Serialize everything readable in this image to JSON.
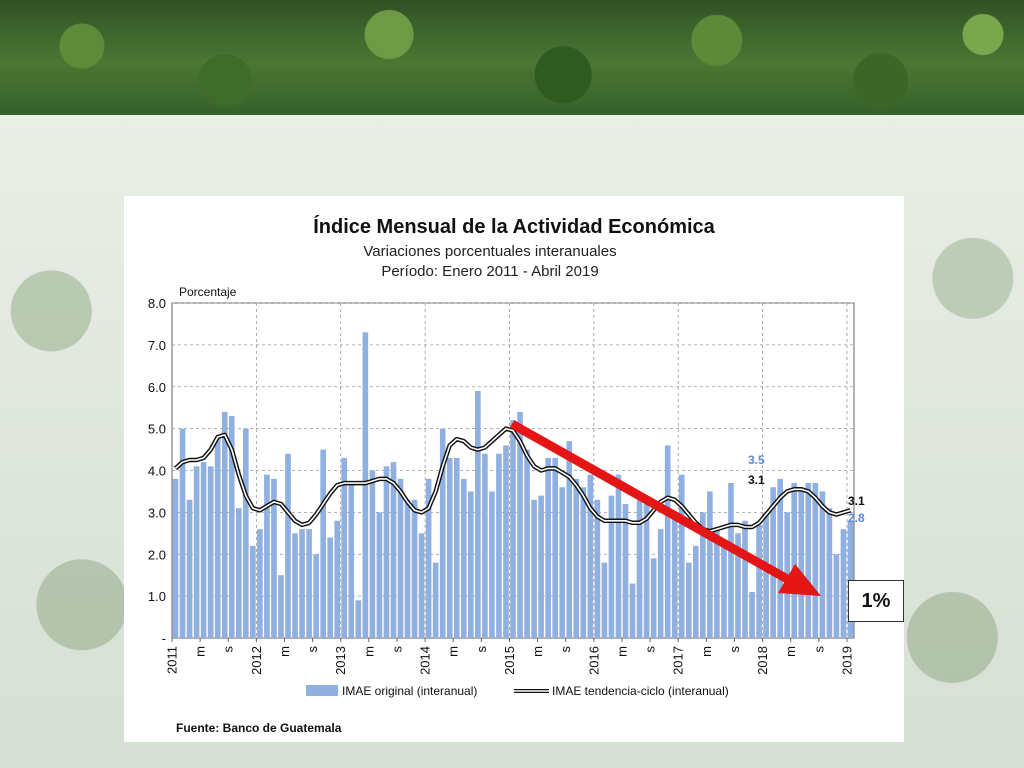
{
  "chart_data": {
    "type": "bar",
    "title": "Índice Mensual de la Actividad Económica",
    "subtitle": "Variaciones porcentuales interanuales",
    "period": "Período: Enero 2011 - Abril 2019",
    "ylabel": "Porcentaje",
    "ylim": [
      0,
      8
    ],
    "yticks": [
      "-",
      "1.0",
      "2.0",
      "3.0",
      "4.0",
      "5.0",
      "6.0",
      "7.0",
      "8.0"
    ],
    "x_tick_labels": [
      "2011",
      "m",
      "s",
      "2012",
      "m",
      "s",
      "2013",
      "m",
      "s",
      "2014",
      "m",
      "s",
      "2015",
      "m",
      "s",
      "2016",
      "m",
      "s",
      "2017",
      "m",
      "s",
      "2018",
      "m",
      "s",
      "2019"
    ],
    "grid": true,
    "legend_position": "bottom",
    "series": [
      {
        "name": "IMAE original (interanual)",
        "color": "#8fb0e0",
        "values": [
          3.8,
          5.0,
          3.3,
          4.1,
          4.2,
          4.1,
          4.8,
          5.4,
          5.3,
          3.1,
          5.0,
          2.2,
          2.6,
          3.9,
          3.8,
          1.5,
          4.4,
          2.5,
          2.6,
          2.6,
          2.0,
          4.5,
          2.4,
          2.8,
          4.3,
          3.7,
          0.9,
          7.3,
          4.0,
          3.0,
          4.1,
          4.2,
          3.8,
          3.3,
          3.3,
          2.5,
          3.8,
          1.8,
          5.0,
          4.3,
          4.3,
          3.8,
          3.5,
          5.9,
          4.4,
          3.5,
          4.4,
          4.6,
          5.2,
          5.4,
          4.5,
          3.3,
          3.4,
          4.3,
          4.3,
          3.6,
          4.7,
          3.8,
          3.6,
          3.9,
          3.3,
          1.8,
          3.4,
          3.9,
          3.2,
          1.3,
          3.3,
          3.2,
          1.9,
          2.6,
          4.6,
          2.9,
          3.9,
          1.8,
          2.2,
          3.0,
          3.5,
          2.6,
          2.3,
          3.7,
          2.5,
          2.8,
          1.1,
          2.7,
          3.0,
          3.6,
          3.8,
          3.0,
          3.7,
          3.6,
          3.7,
          3.7,
          3.5,
          3.1,
          2.0,
          2.6,
          2.8
        ]
      },
      {
        "name": "IMAE tendencia-ciclo (interanual)",
        "color": "#111111",
        "values": [
          4.05,
          4.2,
          4.25,
          4.25,
          4.3,
          4.5,
          4.8,
          4.85,
          4.5,
          3.9,
          3.4,
          3.1,
          3.05,
          3.15,
          3.25,
          3.2,
          3.0,
          2.8,
          2.7,
          2.75,
          2.95,
          3.2,
          3.45,
          3.65,
          3.7,
          3.7,
          3.7,
          3.7,
          3.75,
          3.8,
          3.8,
          3.7,
          3.5,
          3.25,
          3.05,
          3.0,
          3.1,
          3.5,
          4.1,
          4.6,
          4.75,
          4.7,
          4.55,
          4.5,
          4.55,
          4.7,
          4.85,
          5.0,
          4.95,
          4.7,
          4.35,
          4.1,
          4.0,
          4.05,
          4.05,
          3.95,
          3.85,
          3.65,
          3.4,
          3.1,
          2.9,
          2.8,
          2.8,
          2.8,
          2.8,
          2.75,
          2.75,
          2.85,
          3.05,
          3.25,
          3.35,
          3.3,
          3.15,
          2.95,
          2.75,
          2.6,
          2.55,
          2.6,
          2.65,
          2.7,
          2.7,
          2.65,
          2.65,
          2.75,
          2.95,
          3.15,
          3.35,
          3.5,
          3.55,
          3.55,
          3.5,
          3.35,
          3.15,
          3.0,
          2.95,
          3.0,
          3.05
        ]
      }
    ],
    "annotations": [
      {
        "text": "3.5",
        "color": "#5b8bd1"
      },
      {
        "text": "3.1",
        "color": "#111111"
      },
      {
        "text": "3.1",
        "color": "#111111"
      },
      {
        "text": "2.8",
        "color": "#5b8bd1"
      }
    ],
    "trend_arrow_color": "#e31515",
    "callout": "1%",
    "source": "Fuente: Banco de Guatemala"
  }
}
